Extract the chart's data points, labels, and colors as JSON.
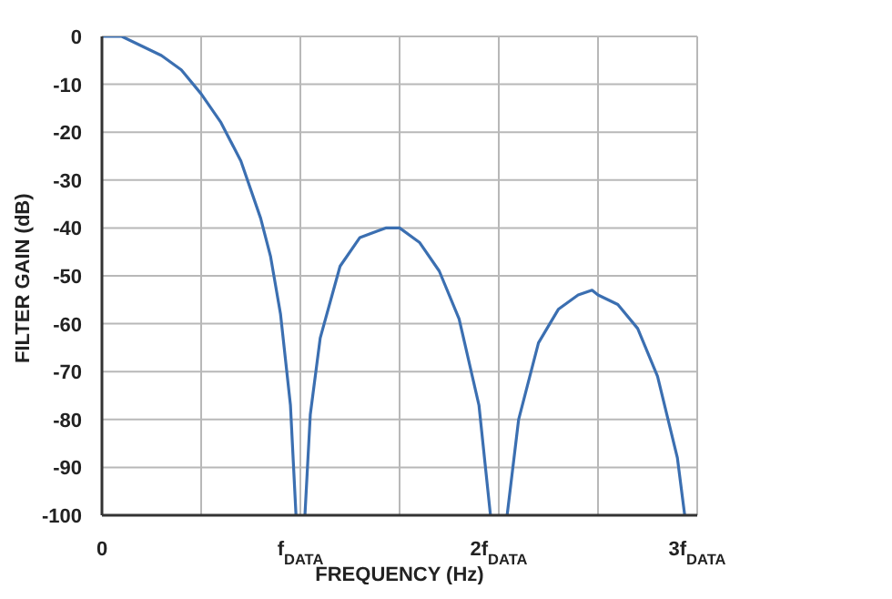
{
  "chart_data": {
    "type": "line",
    "xlabel": "FREQUENCY (Hz)",
    "ylabel": "FILTER GAIN (dB)",
    "x": [
      0,
      0.1,
      0.2,
      0.3,
      0.4,
      0.5,
      0.6,
      0.7,
      0.8,
      0.85,
      0.9,
      0.95,
      0.978,
      1,
      1.023,
      1.05,
      1.1,
      1.2,
      1.3,
      1.43,
      1.5,
      1.6,
      1.7,
      1.8,
      1.9,
      1.958,
      2,
      2.042,
      2.1,
      2.2,
      2.3,
      2.4,
      2.47,
      2.5,
      2.6,
      2.7,
      2.8,
      2.9,
      2.937
    ],
    "series": [
      {
        "color": "#3b6fb1",
        "values": [
          0,
          0,
          -2,
          -4,
          -7,
          -12,
          -18,
          -26,
          -38,
          -46,
          -58,
          -77,
          -100,
          null,
          -100,
          -79,
          -63,
          -48,
          -42,
          -40,
          -40,
          -43,
          -49,
          -59,
          -77,
          -100,
          null,
          -100,
          -80,
          -64,
          -57,
          -54,
          -53,
          -54,
          -56,
          -61,
          -71,
          -88,
          -100
        ]
      }
    ],
    "xlim": [
      0,
      3
    ],
    "xticks": [
      0,
      {
        "value": 0.5,
        "label": null
      },
      {
        "value": 1,
        "label": "f$_{DATA}$"
      },
      {
        "value": 1.5,
        "label": null
      },
      {
        "value": 2,
        "label": "2f$_{DATA}$"
      },
      {
        "value": 2.5,
        "label": null
      },
      {
        "value": 3,
        "label": "3f$_{DATA}$"
      }
    ],
    "ylim": [
      -100,
      0
    ],
    "yticks": [
      -100,
      -90,
      -80,
      -70,
      -60,
      -50,
      -40,
      -30,
      -20,
      -10,
      0
    ],
    "grid": true,
    "marker": "none",
    "line_style": "solid"
  }
}
